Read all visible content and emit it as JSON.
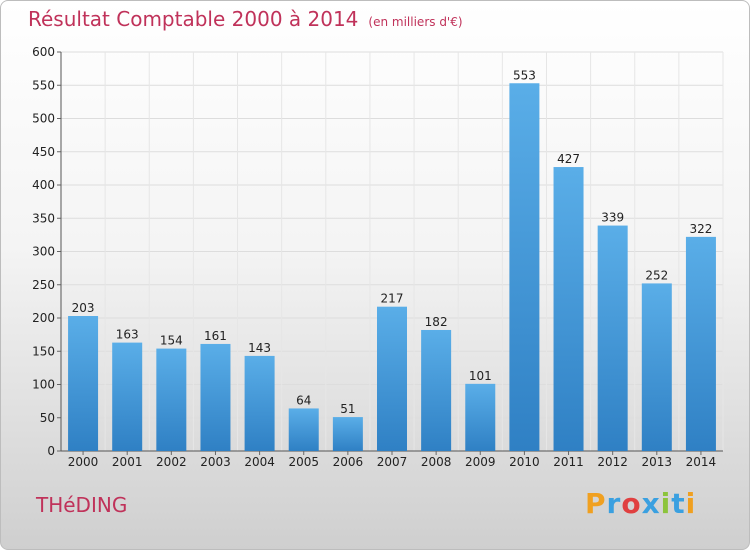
{
  "header": {
    "title": "Résultat Comptable 2000 à 2014",
    "subtitle": "(en milliers d'€)"
  },
  "footer": {
    "city": "THéDING",
    "logo_letters": [
      {
        "ch": "P",
        "color": "#f0a020"
      },
      {
        "ch": "r",
        "color": "#3aa0e0"
      },
      {
        "ch": "o",
        "color": "#e04040"
      },
      {
        "ch": "x",
        "color": "#3aa0e0"
      },
      {
        "ch": "i",
        "color": "#8cc43c"
      },
      {
        "ch": "t",
        "color": "#3aa0e0"
      },
      {
        "ch": "i",
        "color": "#f0a020"
      }
    ]
  },
  "chart_data": {
    "type": "bar",
    "title": "Résultat Comptable 2000 à 2014",
    "subtitle": "(en milliers d'€)",
    "xlabel": "",
    "ylabel": "",
    "categories": [
      "2000",
      "2001",
      "2002",
      "2003",
      "2004",
      "2005",
      "2006",
      "2007",
      "2008",
      "2009",
      "2010",
      "2011",
      "2012",
      "2013",
      "2014"
    ],
    "values": [
      203,
      163,
      154,
      161,
      143,
      64,
      51,
      217,
      182,
      101,
      553,
      427,
      339,
      252,
      322
    ],
    "ylim": [
      0,
      600
    ],
    "yticks": [
      0,
      50,
      100,
      150,
      200,
      250,
      300,
      350,
      400,
      450,
      500,
      550,
      600
    ],
    "grid": true,
    "bar_color": "#3d95d8"
  }
}
